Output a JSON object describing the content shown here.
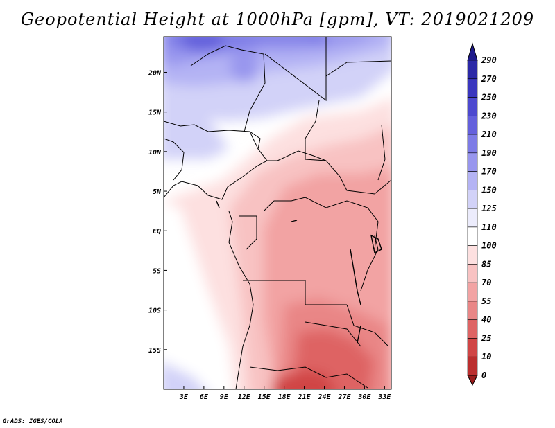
{
  "title": "Geopotential Height at 1000hPa [gpm], VT: 2019021209",
  "footer": "GrADS: IGES/COLA",
  "map": {
    "lon_range": [
      0,
      34
    ],
    "lat_range": [
      -20,
      24.5
    ],
    "lon_ticks": [
      {
        "value": 3,
        "label": "3E"
      },
      {
        "value": 6,
        "label": "6E"
      },
      {
        "value": 9,
        "label": "9E"
      },
      {
        "value": 12,
        "label": "12E"
      },
      {
        "value": 15,
        "label": "15E"
      },
      {
        "value": 18,
        "label": "18E"
      },
      {
        "value": 21,
        "label": "21E"
      },
      {
        "value": 24,
        "label": "24E"
      },
      {
        "value": 27,
        "label": "27E"
      },
      {
        "value": 30,
        "label": "30E"
      },
      {
        "value": 33,
        "label": "33E"
      }
    ],
    "lat_ticks": [
      {
        "value": 20,
        "label": "20N"
      },
      {
        "value": 15,
        "label": "15N"
      },
      {
        "value": 10,
        "label": "10N"
      },
      {
        "value": 5,
        "label": "5N"
      },
      {
        "value": 0,
        "label": "EQ"
      },
      {
        "value": -5,
        "label": "5S"
      },
      {
        "value": -10,
        "label": "10S"
      },
      {
        "value": -15,
        "label": "15S"
      }
    ]
  },
  "colorbar": {
    "levels": [
      {
        "label": "290",
        "color": "#1e1a8c"
      },
      {
        "label": "270",
        "color": "#2b28a6"
      },
      {
        "label": "250",
        "color": "#3a36be"
      },
      {
        "label": "230",
        "color": "#4d49cf"
      },
      {
        "label": "210",
        "color": "#6460dc"
      },
      {
        "label": "190",
        "color": "#7d7be6"
      },
      {
        "label": "170",
        "color": "#9896ee"
      },
      {
        "label": "150",
        "color": "#b4b3f4"
      },
      {
        "label": "125",
        "color": "#d2d2f8"
      },
      {
        "label": "110",
        "color": "#ececfc"
      },
      {
        "label": "100",
        "color": "#ffffff"
      },
      {
        "label": "85",
        "color": "#fde0e0"
      },
      {
        "label": "70",
        "color": "#f8c2c2"
      },
      {
        "label": "55",
        "color": "#f2a3a3"
      },
      {
        "label": "40",
        "color": "#e98686"
      },
      {
        "label": "25",
        "color": "#de6464"
      },
      {
        "label": "10",
        "color": "#d04545"
      },
      {
        "label": "0",
        "color": "#bb2e2e"
      }
    ],
    "bottom_color": "#9a1c1c"
  }
}
